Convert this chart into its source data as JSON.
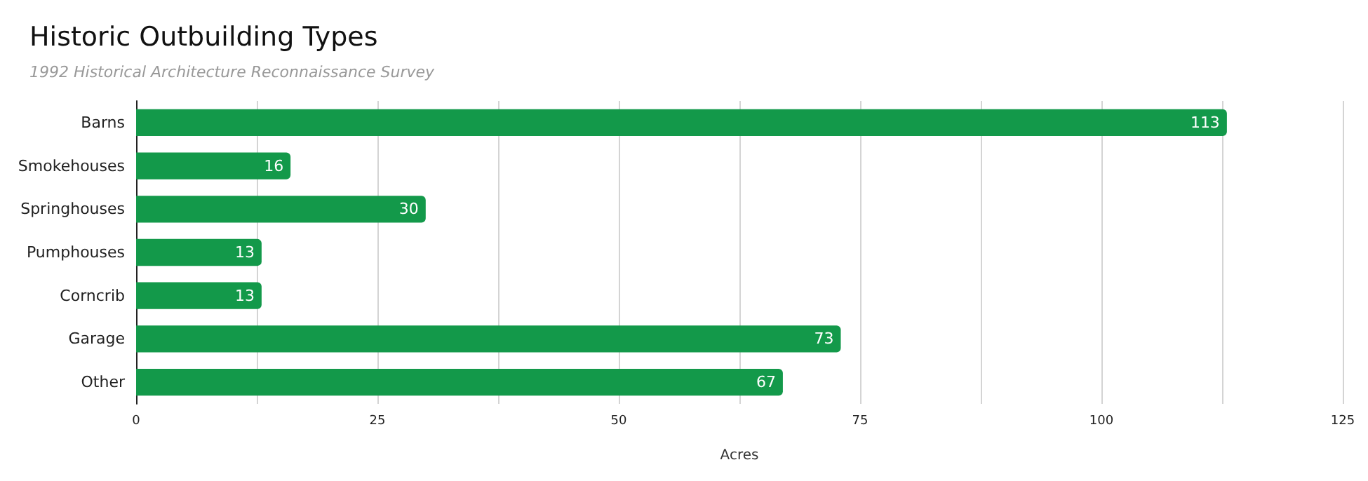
{
  "chart_data": {
    "type": "bar",
    "orientation": "horizontal",
    "title": "Historic Outbuilding Types",
    "subtitle": "1992 Historical Architecture Reconnaissance Survey",
    "xlabel": "Acres",
    "categories": [
      "Barns",
      "Smokehouses",
      "Springhouses",
      "Pumphouses",
      "Corncrib",
      "Garage",
      "Other"
    ],
    "values": [
      113,
      16,
      30,
      13,
      13,
      73,
      67
    ],
    "color": "#13994a",
    "data_labels": true,
    "xlim": [
      0,
      125
    ],
    "xticks": [
      0,
      {
        "value": 12.5,
        "label": null
      },
      25,
      {
        "value": 37.5,
        "label": null
      },
      50,
      {
        "value": 62.5,
        "label": null
      },
      75,
      {
        "value": 87.5,
        "label": null
      },
      100,
      {
        "value": 112.5,
        "label": null
      },
      125
    ],
    "grid": "x"
  }
}
